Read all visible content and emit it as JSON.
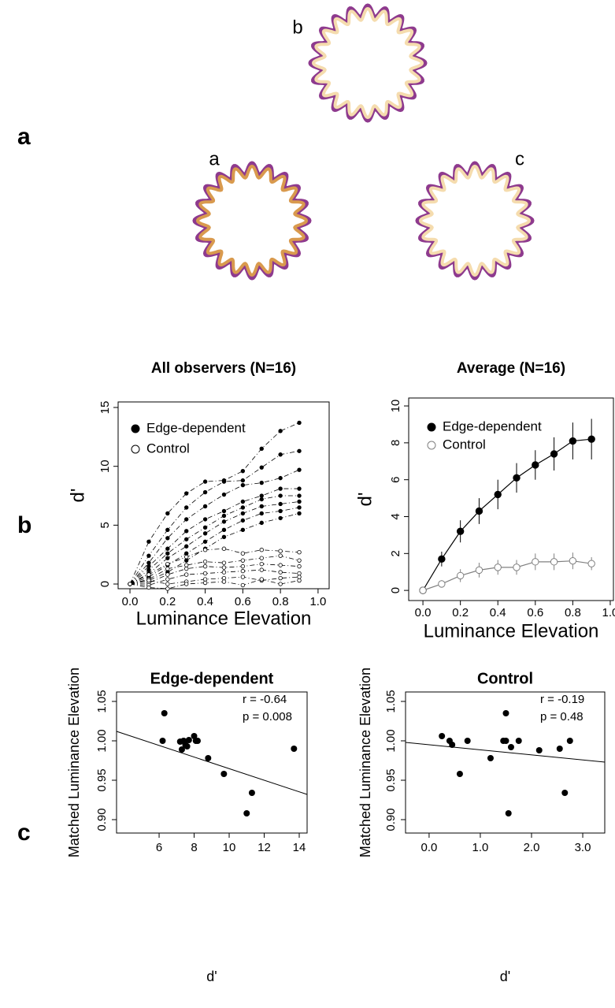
{
  "panel_labels": [
    "a",
    "b",
    "c"
  ],
  "diagram": {
    "shapes": [
      {
        "label": "a"
      },
      {
        "label": "b"
      },
      {
        "label": "c"
      }
    ]
  },
  "chart_data": [
    {
      "type": "observer_lines",
      "title": "All observers (N=16)",
      "x_label": "Luminance Elevation",
      "y_label": "d'",
      "x": [
        0,
        0.1,
        0.2,
        0.3,
        0.4,
        0.5,
        0.6,
        0.7,
        0.8,
        0.9
      ],
      "xlim": [
        -0.063,
        1.059
      ],
      "ylim": [
        -0.4,
        15.47
      ],
      "xticks": [
        {
          "value": 0,
          "label": "0.0"
        },
        0.2,
        0.4,
        0.6,
        0.8,
        {
          "value": 1,
          "label": "1.0"
        }
      ],
      "yticks": [
        0,
        5,
        10,
        15
      ],
      "line_style": "dashdot",
      "series": [
        {
          "name": "Edge-dependent",
          "color": "#000000",
          "marker": "filled",
          "observers": [
            [
              0,
              3.6,
              6.0,
              7.7,
              8.7,
              8.8,
              9.6,
              11.5,
              13.0,
              13.7
            ],
            [
              0,
              2.4,
              4.6,
              6.5,
              7.8,
              8.7,
              8.8,
              9.9,
              11.0,
              11.3
            ],
            [
              0,
              1.8,
              3.9,
              5.5,
              6.6,
              7.6,
              8.4,
              8.6,
              9.0,
              9.7
            ],
            [
              0,
              1.5,
              3.0,
              4.5,
              5.5,
              6.2,
              7.0,
              7.5,
              8.1,
              8.1
            ],
            [
              0,
              1.2,
              2.6,
              3.8,
              4.8,
              5.8,
              6.5,
              7.2,
              7.5,
              7.5
            ],
            [
              0,
              0.9,
              2.2,
              3.2,
              4.3,
              5.3,
              6.0,
              6.6,
              6.8,
              7.0
            ],
            [
              0,
              0.6,
              1.6,
              2.6,
              3.6,
              4.6,
              5.4,
              6.0,
              6.2,
              6.5
            ],
            [
              0,
              0.3,
              1.0,
              2.0,
              3.0,
              4.0,
              4.6,
              5.2,
              5.6,
              6.0
            ]
          ]
        },
        {
          "name": "Control",
          "color": "#000000",
          "marker": "open",
          "observers": [
            [
              0,
              0.8,
              1.7,
              2.3,
              2.9,
              3.0,
              2.6,
              2.9,
              2.8,
              2.7
            ],
            [
              0,
              0.4,
              1.3,
              1.6,
              1.9,
              1.8,
              2.0,
              2.2,
              2.4,
              2.0
            ],
            [
              0,
              0.1,
              0.8,
              1.3,
              1.5,
              1.4,
              1.5,
              1.7,
              1.6,
              1.5
            ],
            [
              0,
              -0.1,
              0.4,
              0.8,
              0.9,
              1.0,
              1.1,
              1.2,
              1.0,
              0.9
            ],
            [
              0,
              0.3,
              0.0,
              0.2,
              0.4,
              0.5,
              0.6,
              0.3,
              0.5,
              0.6
            ],
            [
              0,
              -0.3,
              -0.4,
              0.0,
              0.1,
              0.2,
              -0.1,
              0.4,
              0.0,
              0.3
            ]
          ]
        }
      ]
    },
    {
      "type": "errorbar_line",
      "title": "Average (N=16)",
      "x_label": "Luminance Elevation",
      "y_label": "d'",
      "x": [
        0,
        0.1,
        0.2,
        0.3,
        0.4,
        0.5,
        0.6,
        0.7,
        0.8,
        0.9
      ],
      "xlim": [
        -0.076,
        1.017
      ],
      "ylim": [
        -0.55,
        10.43
      ],
      "xticks": [
        {
          "value": 0,
          "label": "0.0"
        },
        0.2,
        0.4,
        0.6,
        0.8,
        {
          "value": 1,
          "label": "1.0"
        }
      ],
      "yticks": [
        0,
        2,
        4,
        6,
        8,
        10
      ],
      "series": [
        {
          "name": "Edge-dependent",
          "color": "#000000",
          "marker": "filled",
          "values": [
            0,
            1.7,
            3.2,
            4.3,
            5.2,
            6.1,
            6.8,
            7.4,
            8.1,
            8.2
          ],
          "errors": [
            0,
            0.4,
            0.6,
            0.7,
            0.8,
            0.8,
            0.8,
            0.9,
            1.0,
            1.1
          ]
        },
        {
          "name": "Control",
          "color": "#808080",
          "marker": "open",
          "values": [
            0,
            0.35,
            0.8,
            1.1,
            1.25,
            1.25,
            1.55,
            1.55,
            1.6,
            1.45
          ],
          "errors": [
            0,
            0.2,
            0.35,
            0.4,
            0.4,
            0.4,
            0.45,
            0.45,
            0.45,
            0.35
          ]
        }
      ]
    },
    {
      "type": "scatter",
      "title": "Edge-dependent",
      "x_label": "d'",
      "y_label": "Matched Luminance Elevation",
      "xlim": [
        3.57,
        14.45
      ],
      "ylim": [
        0.883,
        1.062
      ],
      "xticks": [
        6,
        8,
        10,
        12,
        14
      ],
      "yticks": [
        {
          "value": 0.9,
          "label": "0.90"
        },
        0.95,
        {
          "value": 1,
          "label": "1.00"
        },
        1.05
      ],
      "annotations": [
        "r =  -0.64",
        "p =  0.008"
      ],
      "color": "#000000",
      "x": [
        6.2,
        6.3,
        7.2,
        7.3,
        7.4,
        7.5,
        7.6,
        7.7,
        8.0,
        8.1,
        8.2,
        8.8,
        9.7,
        11.0,
        11.3,
        13.7
      ],
      "values": [
        1.0,
        1.035,
        0.999,
        0.989,
        1.0,
        0.995,
        0.993,
        1.001,
        1.006,
        1.0,
        1.0,
        0.978,
        0.958,
        0.908,
        0.934,
        0.99
      ],
      "fit_line": {
        "x": [
          3.57,
          14.45
        ],
        "y": [
          1.012,
          0.932
        ]
      }
    },
    {
      "type": "scatter",
      "title": "Control",
      "x_label": "d'",
      "y_label": "Matched Luminance Elevation",
      "xlim": [
        -0.46,
        3.43
      ],
      "ylim": [
        0.883,
        1.062
      ],
      "xticks": [
        {
          "value": 0,
          "label": "0.0"
        },
        {
          "value": 1,
          "label": "1.0"
        },
        {
          "value": 2,
          "label": "2.0"
        },
        {
          "value": 3,
          "label": "3.0"
        }
      ],
      "yticks": [
        {
          "value": 0.9,
          "label": "0.90"
        },
        0.95,
        {
          "value": 1,
          "label": "1.00"
        },
        1.05
      ],
      "annotations": [
        "r =  -0.19",
        "p =  0.48"
      ],
      "color": "#000000",
      "x": [
        0.25,
        0.4,
        0.45,
        0.6,
        0.75,
        1.2,
        1.45,
        1.5,
        1.5,
        1.55,
        1.6,
        1.75,
        2.15,
        2.55,
        2.65,
        2.75
      ],
      "values": [
        1.006,
        1.0,
        0.995,
        0.958,
        1.0,
        0.978,
        1.0,
        1.035,
        1.0,
        0.908,
        0.992,
        1.0,
        0.988,
        0.99,
        0.934,
        1.0
      ],
      "fit_line": {
        "x": [
          -0.46,
          3.43
        ],
        "y": [
          0.998,
          0.973
        ]
      }
    }
  ]
}
